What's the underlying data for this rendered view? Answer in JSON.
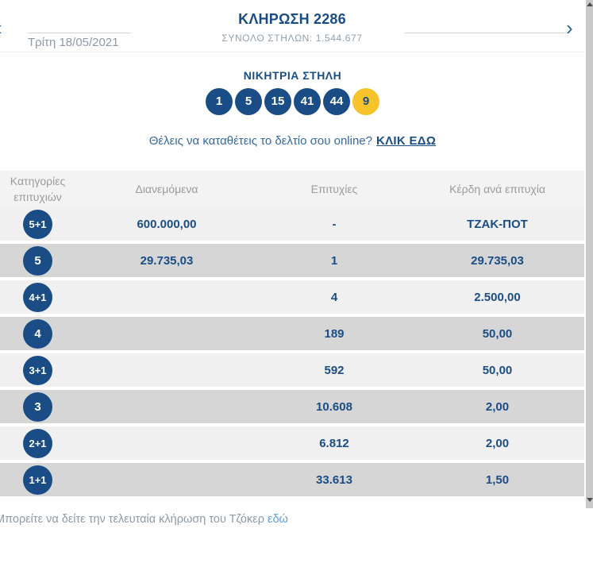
{
  "colors": {
    "navy": "#1a4d85",
    "joker_yellow": "#f6c32a",
    "link_blue": "#5d9bd3"
  },
  "header": {
    "prev_arrow": "‹",
    "next_arrow": "›",
    "date": "Τρίτη 18/05/2021",
    "title": "ΚΛΗΡΩΣΗ 2286",
    "subtitle": "ΣΥΝΟΛΟ ΣΤΗΛΩΝ: 1.544.677"
  },
  "winning_column": {
    "heading": "ΝΙΚΗΤΡΙΑ ΣΤΗΛΗ",
    "numbers": [
      "1",
      "5",
      "15",
      "41",
      "44"
    ],
    "joker_number": "9"
  },
  "online_cta": {
    "text": "Θέλεις να καταθέτεις το δελτίο σου online?",
    "link_label": "ΚΛΙΚ ΕΔΩ"
  },
  "table": {
    "headers": {
      "category": "Κατηγορίες επιτυχιών",
      "distributed": "Διανεμόμενα",
      "winners": "Επιτυχίες",
      "prize": "Κέρδη ανά επιτυχία"
    },
    "rows": [
      {
        "category": "5+1",
        "distributed": "600.000,00",
        "winners": "-",
        "prize": "ΤΖΑΚ-ΠΟΤ"
      },
      {
        "category": "5",
        "distributed": "29.735,03",
        "winners": "1",
        "prize": "29.735,03"
      },
      {
        "category": "4+1",
        "distributed": "",
        "winners": "4",
        "prize": "2.500,00"
      },
      {
        "category": "4",
        "distributed": "",
        "winners": "189",
        "prize": "50,00"
      },
      {
        "category": "3+1",
        "distributed": "",
        "winners": "592",
        "prize": "50,00"
      },
      {
        "category": "3",
        "distributed": "",
        "winners": "10.608",
        "prize": "2,00"
      },
      {
        "category": "2+1",
        "distributed": "",
        "winners": "6.812",
        "prize": "2,00"
      },
      {
        "category": "1+1",
        "distributed": "",
        "winners": "33.613",
        "prize": "1,50"
      }
    ]
  },
  "footer": {
    "text": "Μπορείτε να δείτε την τελευταία κλήρωση του Τζόκερ",
    "link_label": "εδώ"
  }
}
